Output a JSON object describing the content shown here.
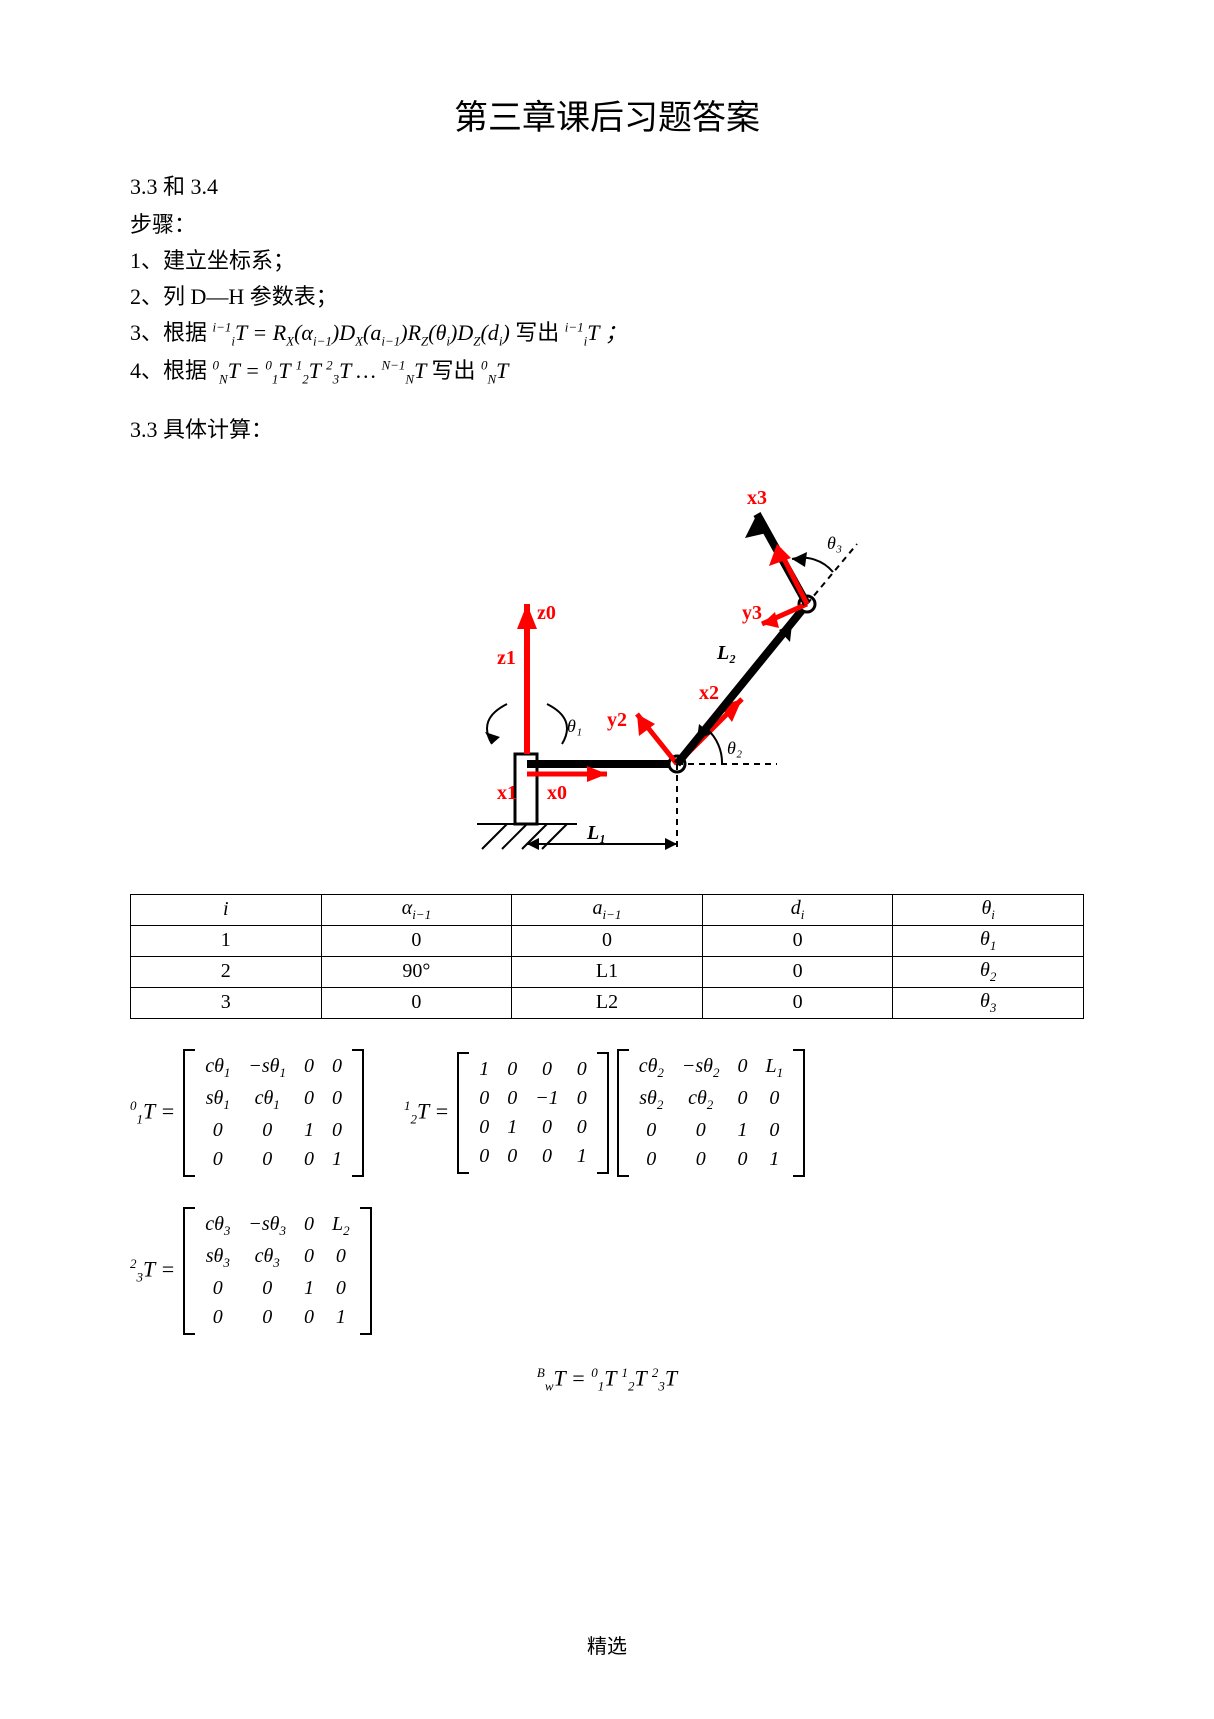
{
  "title": "第三章课后习题答案",
  "section_heading": "3.3 和 3.4",
  "steps_label": "步骤：",
  "steps": [
    "1、建立坐标系；",
    "2、列 D—H 参数表；"
  ],
  "step3_prefix": "3、根据",
  "step3_suffix": "写出",
  "step4_prefix": "4、根据",
  "step4_suffix": "写出",
  "subsection": "3.3 具体计算：",
  "diagram": {
    "labels": {
      "x0": "x0",
      "x1": "x1",
      "x2": "x2",
      "x3": "x3",
      "y2": "y2",
      "y3": "y3",
      "z0": "z0",
      "z1": "z1",
      "L1": "L₁",
      "L2": "L₂",
      "th1": "θ₁",
      "th2": "θ₂",
      "th3": "θ₃"
    },
    "axis_color": "#ff0000",
    "line_color": "#000000",
    "text_color_red": "#ff0000",
    "text_color_black": "#000000"
  },
  "dh_table": {
    "headers": [
      "i",
      "α",
      "a",
      "d",
      "θ"
    ],
    "header_subs": [
      "",
      "i−1",
      "i−1",
      "i",
      "i"
    ],
    "rows": [
      [
        "1",
        "0",
        "0",
        "0",
        "θ",
        "1"
      ],
      [
        "2",
        "90°",
        "L1",
        "0",
        "θ",
        "2"
      ],
      [
        "3",
        "0",
        "L2",
        "0",
        "θ",
        "3"
      ]
    ]
  },
  "matrices": {
    "T01": {
      "label_pre": "0",
      "label_sub": "1",
      "label_main": "T =",
      "cells": [
        [
          "cθ",
          "−sθ",
          "0",
          "0"
        ],
        [
          "sθ",
          "cθ",
          "0",
          "0"
        ],
        [
          "0",
          "0",
          "1",
          "0"
        ],
        [
          "0",
          "0",
          "0",
          "1"
        ]
      ],
      "cell_subs": [
        [
          "1",
          "1",
          "",
          ""
        ],
        [
          "1",
          "1",
          "",
          ""
        ],
        [
          "",
          "",
          "",
          ""
        ],
        [
          "",
          "",
          "",
          ""
        ]
      ]
    },
    "T12": {
      "label_pre": "1",
      "label_sub": "2",
      "label_main": "T =",
      "A": [
        [
          "1",
          "0",
          "0",
          "0"
        ],
        [
          "0",
          "0",
          "−1",
          "0"
        ],
        [
          "0",
          "1",
          "0",
          "0"
        ],
        [
          "0",
          "0",
          "0",
          "1"
        ]
      ],
      "B": [
        [
          "cθ",
          "−sθ",
          "0",
          "L"
        ],
        [
          "sθ",
          "cθ",
          "0",
          "0"
        ],
        [
          "0",
          "0",
          "1",
          "0"
        ],
        [
          "0",
          "0",
          "0",
          "1"
        ]
      ],
      "B_subs": [
        [
          "2",
          "2",
          "",
          "1"
        ],
        [
          "2",
          "2",
          "",
          ""
        ],
        [
          "",
          "",
          "",
          ""
        ],
        [
          "",
          "",
          "",
          ""
        ]
      ]
    },
    "T23": {
      "label_pre": "2",
      "label_sub": "3",
      "label_main": "T =",
      "cells": [
        [
          "cθ",
          "−sθ",
          "0",
          "L"
        ],
        [
          "sθ",
          "cθ",
          "0",
          "0"
        ],
        [
          "0",
          "0",
          "1",
          "0"
        ],
        [
          "0",
          "0",
          "0",
          "1"
        ]
      ],
      "cell_subs": [
        [
          "3",
          "3",
          "",
          "2"
        ],
        [
          "3",
          "3",
          "",
          ""
        ],
        [
          "",
          "",
          "",
          ""
        ],
        [
          "",
          "",
          "",
          ""
        ]
      ]
    }
  },
  "final_equation": {
    "lhs_pre": "B",
    "lhs_sub": "w",
    "lhs_main": "T",
    "eq": "=",
    "terms": [
      {
        "pre": "0",
        "sub": "1",
        "main": "T"
      },
      {
        "pre": "1",
        "sub": "2",
        "main": "T"
      },
      {
        "pre": "2",
        "sub": "3",
        "main": "T"
      }
    ]
  },
  "footer": "精选"
}
